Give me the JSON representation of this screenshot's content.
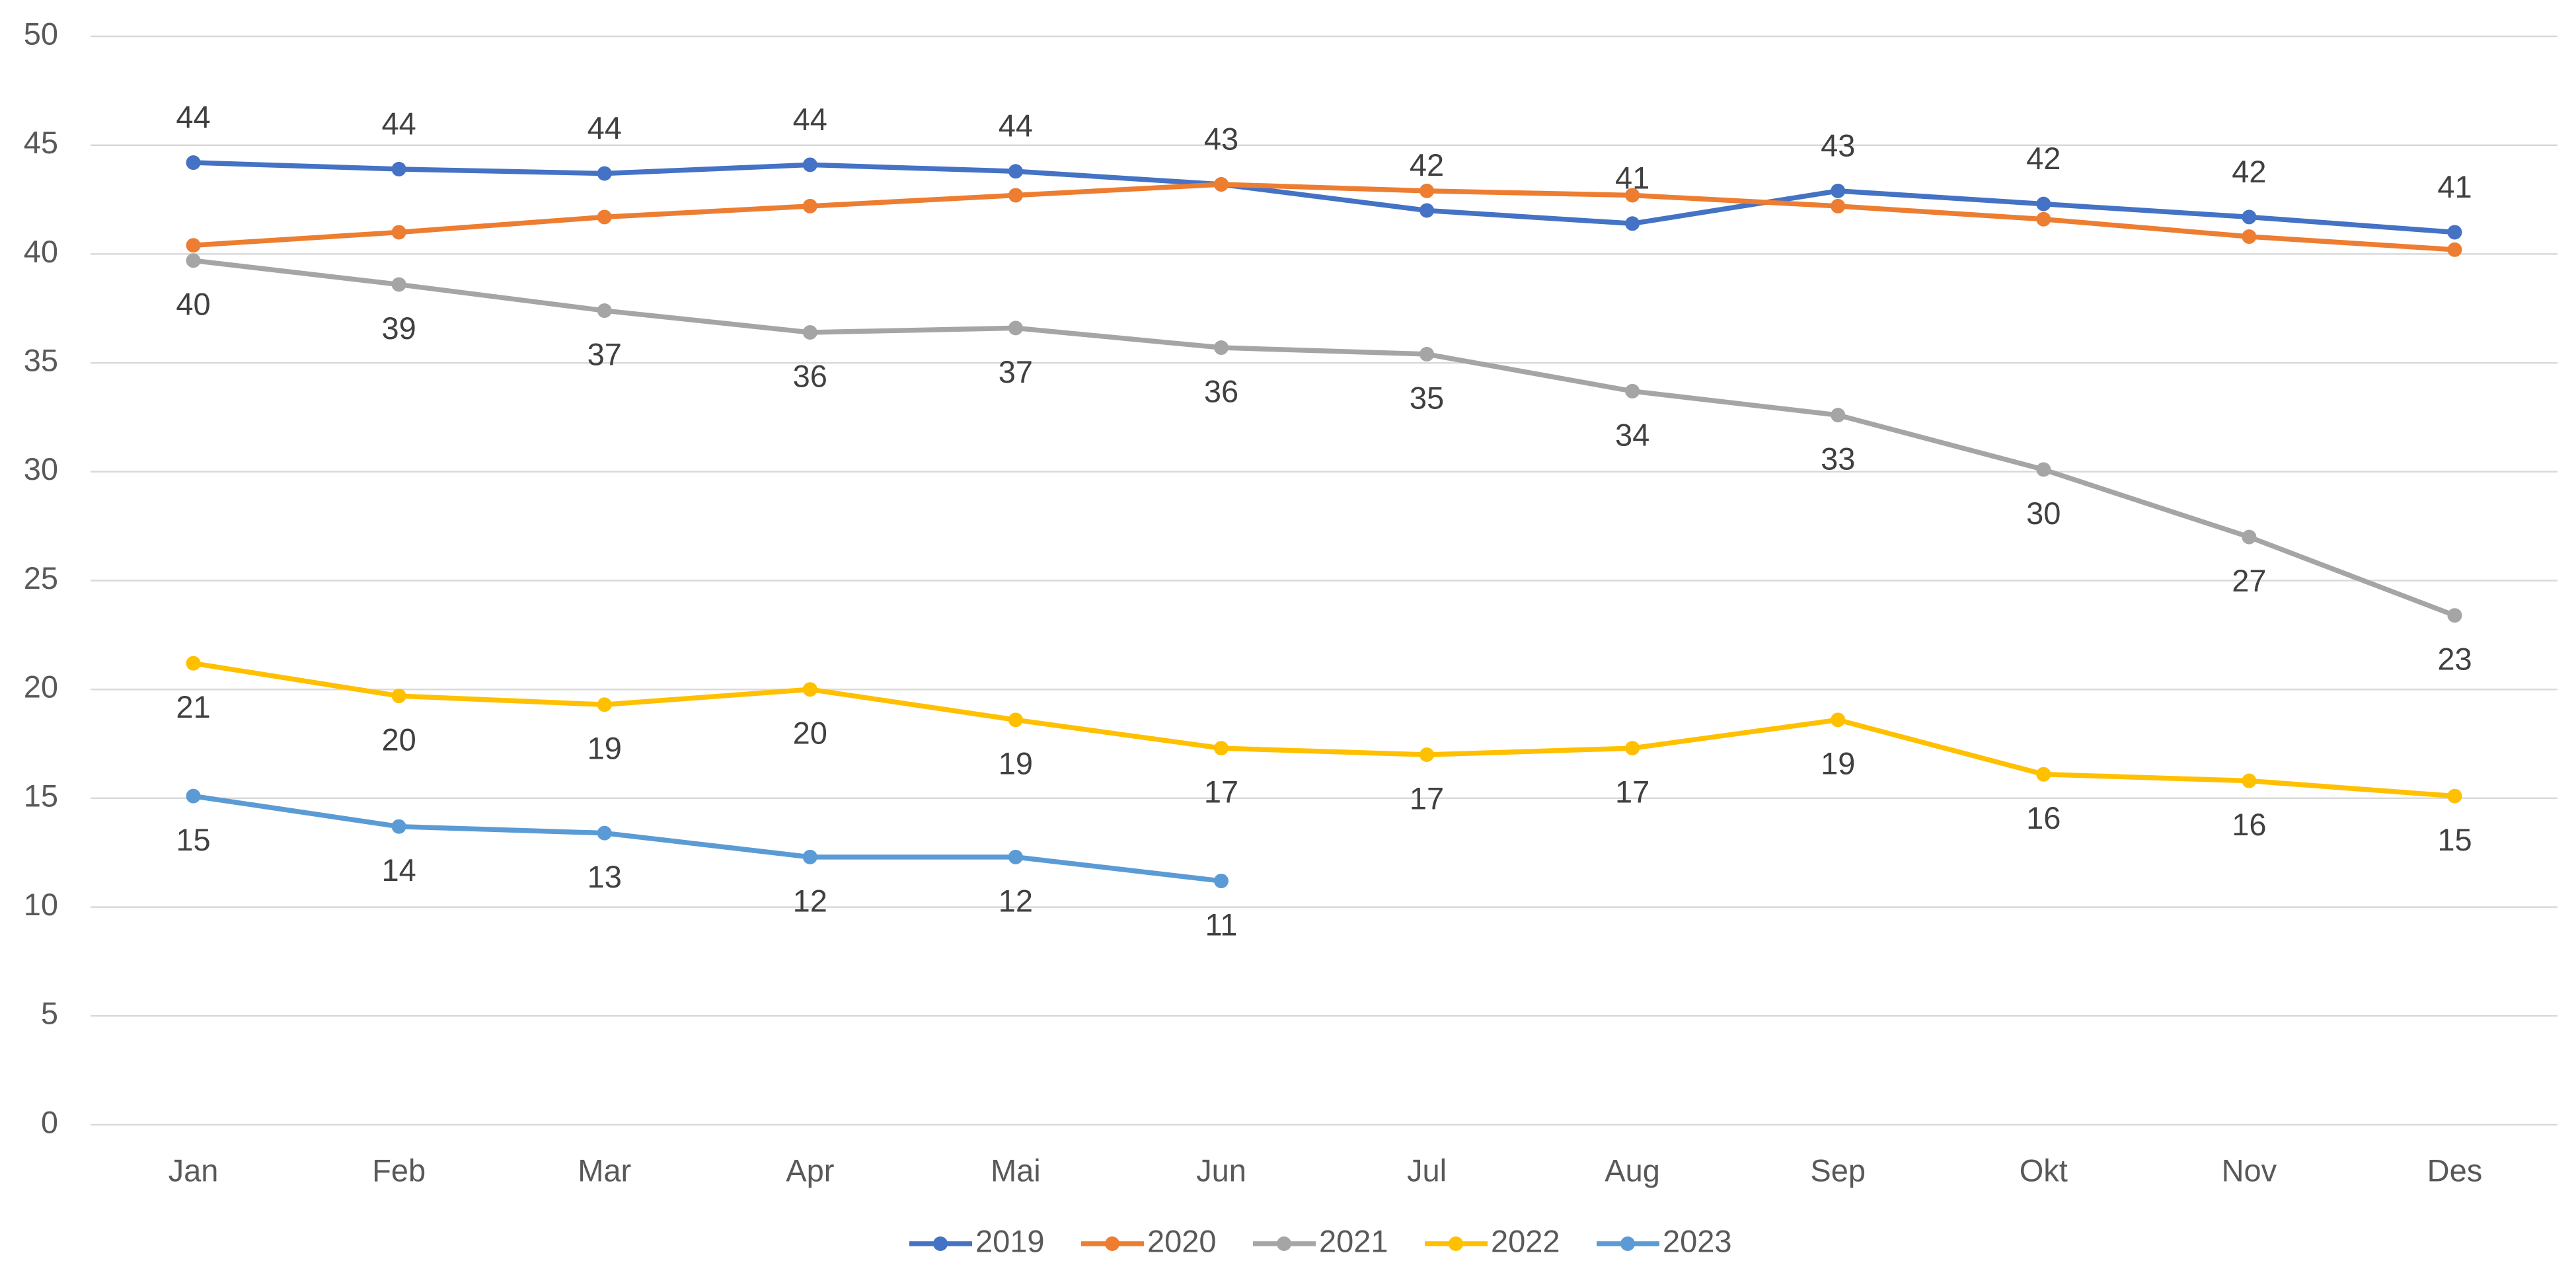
{
  "chart_data": {
    "type": "line",
    "categories": [
      "Jan",
      "Feb",
      "Mar",
      "Apr",
      "Mai",
      "Jun",
      "Jul",
      "Aug",
      "Sep",
      "Okt",
      "Nov",
      "Des"
    ],
    "ylim": [
      0,
      50
    ],
    "yticks": [
      0,
      5,
      10,
      15,
      20,
      25,
      30,
      35,
      40,
      45,
      50
    ],
    "grid": true,
    "legend": "bottom",
    "series": [
      {
        "name": "2019",
        "color": "#4472c4",
        "label_position": "above",
        "values": [
          44.2,
          43.9,
          43.7,
          44.1,
          43.8,
          43.2,
          42.0,
          41.4,
          42.9,
          42.3,
          41.7,
          41.0
        ],
        "value_labels": [
          "44",
          "44",
          "44",
          "44",
          "44",
          "43",
          "42",
          "41",
          "43",
          "42",
          "42",
          "41"
        ]
      },
      {
        "name": "2020",
        "color": "#ed7d31",
        "values": [
          40.4,
          41.0,
          41.7,
          42.2,
          42.7,
          43.2,
          42.9,
          42.7,
          42.2,
          41.6,
          40.8,
          40.2
        ]
      },
      {
        "name": "2021",
        "color": "#a5a5a5",
        "label_position": "below",
        "values": [
          39.7,
          38.6,
          37.4,
          36.4,
          36.6,
          35.7,
          35.4,
          33.7,
          32.6,
          30.1,
          27.0,
          23.4
        ],
        "value_labels": [
          "40",
          "39",
          "37",
          "36",
          "37",
          "36",
          "35",
          "34",
          "33",
          "30",
          "27",
          "23"
        ]
      },
      {
        "name": "2022",
        "color": "#ffc000",
        "label_position": "below",
        "values": [
          21.2,
          19.7,
          19.3,
          20.0,
          18.6,
          17.3,
          17.0,
          17.3,
          18.6,
          16.1,
          15.8,
          15.1
        ],
        "value_labels": [
          "21",
          "20",
          "19",
          "20",
          "19",
          "17",
          "17",
          "17",
          "19",
          "16",
          "16",
          "15"
        ]
      },
      {
        "name": "2023",
        "color": "#5b9bd5",
        "label_position": "below",
        "values": [
          15.1,
          13.7,
          13.4,
          12.3,
          12.3,
          11.2,
          null,
          null,
          null,
          null,
          null,
          null
        ],
        "value_labels": [
          "15",
          "14",
          "13",
          "12",
          "12",
          "11",
          null,
          null,
          null,
          null,
          null,
          null
        ]
      }
    ]
  }
}
